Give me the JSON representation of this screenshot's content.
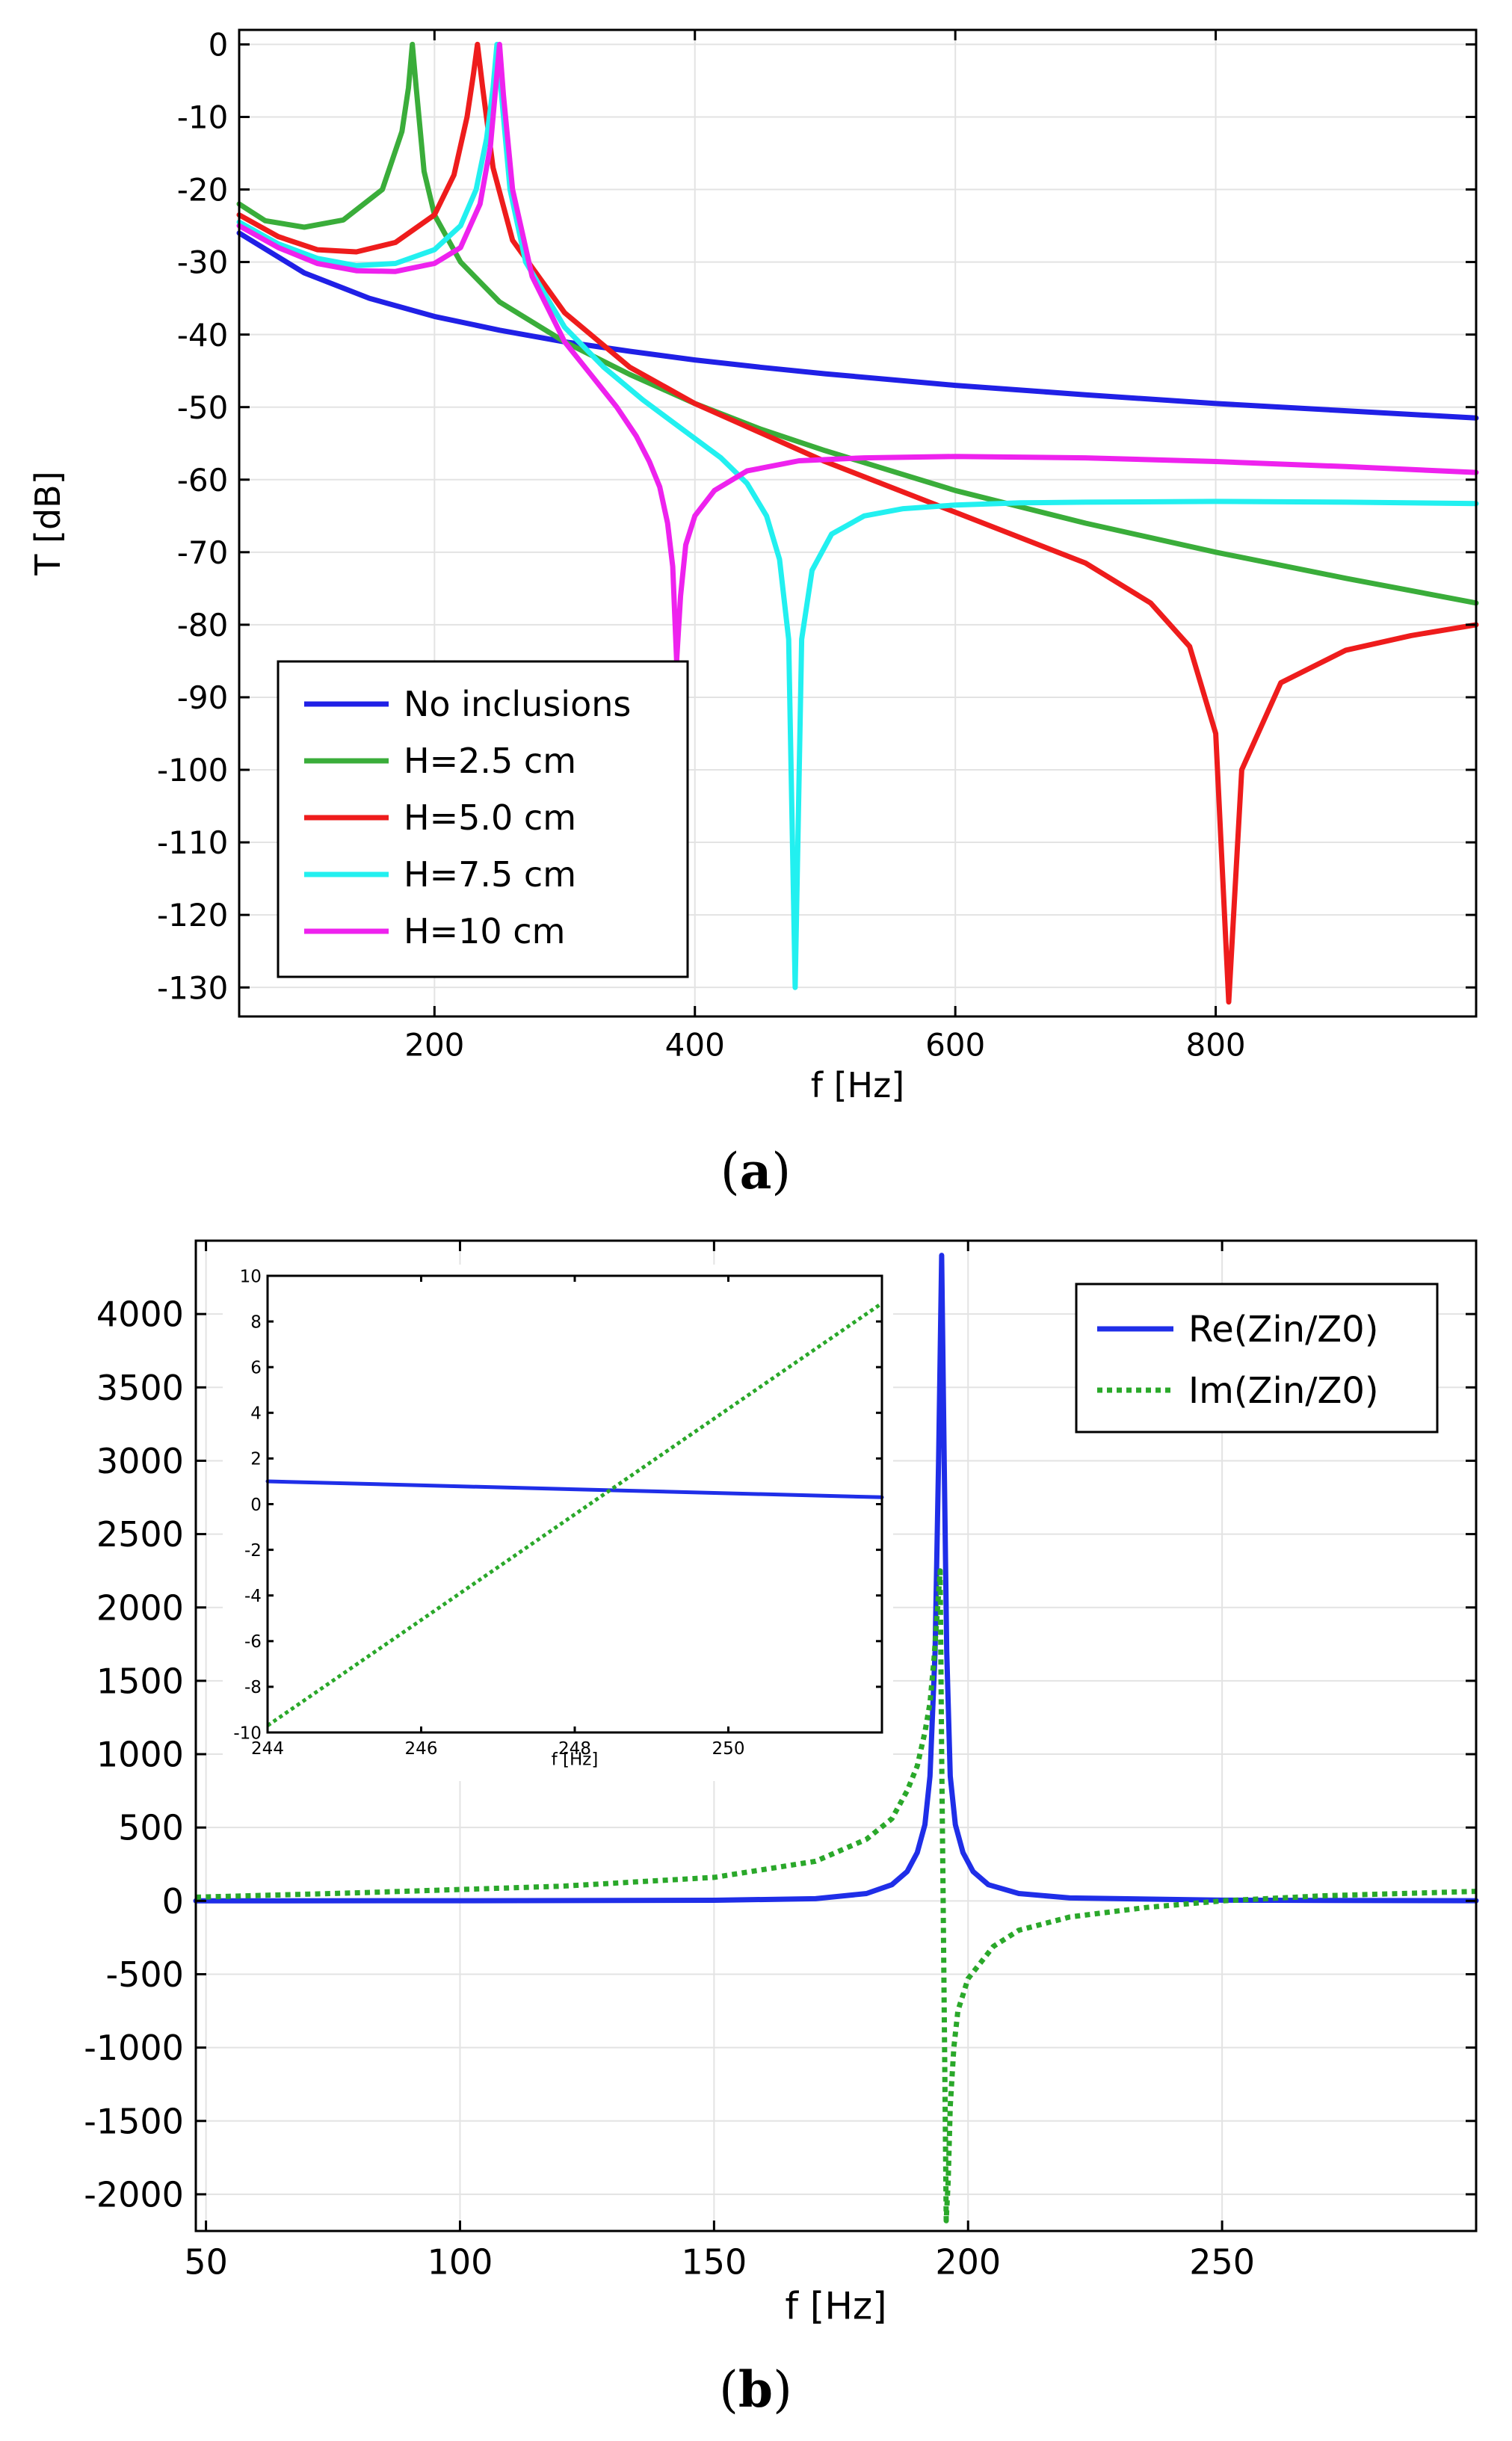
{
  "chart_data": [
    {
      "type": "line",
      "panel_label": "a",
      "xlabel": "f [Hz]",
      "ylabel": "T [dB]",
      "xlim": [
        50,
        1000
      ],
      "ylim": [
        -134,
        2
      ],
      "xticks": [
        200,
        400,
        600,
        800
      ],
      "yticks": [
        0,
        -10,
        -20,
        -30,
        -40,
        -50,
        -60,
        -70,
        -80,
        -90,
        -100,
        -110,
        -120,
        -130
      ],
      "grid": true,
      "legend_position": "bottom-left",
      "series": [
        {
          "name": "No inclusions",
          "color": "#2020e6",
          "x": [
            50,
            100,
            150,
            200,
            250,
            300,
            350,
            400,
            450,
            500,
            600,
            700,
            800,
            900,
            1000
          ],
          "y": [
            -26,
            -31.5,
            -35,
            -37.5,
            -39.4,
            -41,
            -42.3,
            -43.5,
            -44.5,
            -45.4,
            -47,
            -48.3,
            -49.5,
            -50.5,
            -51.5
          ]
        },
        {
          "name": "H=2.5 cm",
          "color": "#3aad3a",
          "x": [
            50,
            70,
            100,
            130,
            160,
            175,
            180,
            183,
            186,
            192,
            200,
            220,
            250,
            300,
            350,
            400,
            450,
            500,
            600,
            700,
            800,
            900,
            1000
          ],
          "y": [
            -22,
            -24.3,
            -25.2,
            -24.2,
            -20,
            -12,
            -6,
            0,
            -6,
            -17.5,
            -23.5,
            -30,
            -35.5,
            -41,
            -45.5,
            -49.5,
            -53,
            -56,
            -61.5,
            -66,
            -70,
            -73.6,
            -77
          ]
        },
        {
          "name": "H=5.0 cm",
          "color": "#ee1c1c",
          "x": [
            50,
            80,
            110,
            140,
            170,
            200,
            215,
            225,
            230,
            233,
            237,
            245,
            260,
            300,
            350,
            400,
            450,
            500,
            550,
            600,
            650,
            700,
            750,
            780,
            800,
            810,
            820,
            850,
            900,
            950,
            1000
          ],
          "y": [
            -23.5,
            -26.5,
            -28.3,
            -28.6,
            -27.3,
            -23.5,
            -18,
            -10,
            -4,
            0,
            -6,
            -17,
            -27,
            -37,
            -44.5,
            -49.5,
            -53.5,
            -57.5,
            -61,
            -64.5,
            -68,
            -71.5,
            -77,
            -83,
            -95,
            -132,
            -100,
            -88,
            -83.5,
            -81.5,
            -80
          ]
        },
        {
          "name": "H=7.5 cm",
          "color": "#22f0f0",
          "x": [
            50,
            80,
            110,
            140,
            170,
            200,
            220,
            232,
            240,
            245,
            248,
            252,
            258,
            270,
            300,
            330,
            360,
            390,
            420,
            440,
            455,
            465,
            472,
            477,
            482,
            490,
            505,
            530,
            560,
            600,
            650,
            700,
            800,
            900,
            1000
          ],
          "y": [
            -24.5,
            -27.5,
            -29.5,
            -30.5,
            -30.2,
            -28.3,
            -25,
            -20,
            -13,
            -6,
            0,
            -8,
            -20,
            -30,
            -39,
            -44.5,
            -49,
            -53,
            -57,
            -60.5,
            -65,
            -71,
            -82,
            -130,
            -82,
            -72.5,
            -67.5,
            -65,
            -64,
            -63.5,
            -63.2,
            -63.1,
            -63,
            -63.1,
            -63.3
          ]
        },
        {
          "name": "H=10 cm",
          "color": "#ee22ee",
          "x": [
            50,
            80,
            110,
            140,
            170,
            200,
            220,
            235,
            243,
            247,
            250,
            253,
            260,
            275,
            300,
            320,
            340,
            355,
            365,
            373,
            379,
            383,
            386,
            389,
            393,
            400,
            415,
            440,
            480,
            530,
            600,
            700,
            800,
            900,
            1000
          ],
          "y": [
            -25,
            -28,
            -30.2,
            -31.2,
            -31.3,
            -30.2,
            -28,
            -22,
            -14,
            -6,
            0,
            -7,
            -20,
            -32,
            -41,
            -45.5,
            -50,
            -54,
            -57.5,
            -61,
            -66,
            -72,
            -85,
            -76,
            -69,
            -65,
            -61.5,
            -58.8,
            -57.4,
            -57,
            -56.8,
            -57,
            -57.5,
            -58.2,
            -59
          ]
        }
      ]
    },
    {
      "type": "line",
      "panel_label": "b",
      "xlabel": "f [Hz]",
      "ylabel": "",
      "xlim": [
        48,
        300
      ],
      "ylim": [
        -2250,
        4500
      ],
      "xticks": [
        50,
        100,
        150,
        200,
        250
      ],
      "yticks": [
        4000,
        3500,
        3000,
        2500,
        2000,
        1500,
        1000,
        500,
        0,
        -500,
        -1000,
        -1500,
        -2000
      ],
      "grid": true,
      "legend_position": "top-right",
      "series": [
        {
          "name": "Re(Zin/Z0)",
          "color": "#1f2ee8",
          "style": "solid",
          "x": [
            48,
            100,
            150,
            170,
            180,
            185,
            188,
            190,
            191.5,
            192.5,
            193.5,
            194.2,
            194.8,
            195.3,
            195.8,
            196.5,
            197.5,
            199,
            201,
            204,
            210,
            220,
            250,
            300
          ],
          "y": [
            0,
            1,
            4,
            15,
            50,
            110,
            200,
            330,
            520,
            850,
            1700,
            3000,
            4400,
            3000,
            1700,
            850,
            520,
            330,
            200,
            110,
            50,
            20,
            5,
            1
          ]
        },
        {
          "name": "Im(Zin/Z0)",
          "color": "#2aa82a",
          "style": "dotted",
          "x": [
            48,
            80,
            120,
            150,
            170,
            180,
            185,
            188,
            190,
            191.5,
            192.5,
            193.3,
            194,
            194.5,
            194.8,
            195.1,
            195.4,
            195.7,
            196.1,
            196.5,
            197.2,
            198,
            200,
            205,
            210,
            220,
            235,
            250,
            270,
            300
          ],
          "y": [
            25,
            55,
            100,
            160,
            270,
            420,
            560,
            750,
            920,
            1150,
            1350,
            1650,
            2000,
            2250,
            1000,
            0,
            -1100,
            -2180,
            -1900,
            -1400,
            -1000,
            -750,
            -530,
            -310,
            -200,
            -110,
            -45,
            0,
            35,
            65
          ]
        }
      ]
    },
    {
      "type": "line",
      "panel_label": "b-inset",
      "xlabel": "f [Hz]",
      "ylabel": "",
      "xlim": [
        244,
        252
      ],
      "ylim": [
        -10,
        10
      ],
      "xticks": [
        244,
        246,
        248,
        250
      ],
      "yticks": [
        10,
        8,
        6,
        4,
        2,
        0,
        -2,
        -4,
        -6,
        -8,
        -10
      ],
      "grid": false,
      "series": [
        {
          "name": "Re(Zin/Z0)",
          "color": "#1f2ee8",
          "style": "solid",
          "x": [
            244,
            252
          ],
          "y": [
            1,
            0.3
          ]
        },
        {
          "name": "Im(Zin/Z0)",
          "color": "#2aa82a",
          "style": "dotted",
          "x": [
            244,
            252
          ],
          "y": [
            -9.7,
            8.8
          ]
        }
      ]
    }
  ]
}
